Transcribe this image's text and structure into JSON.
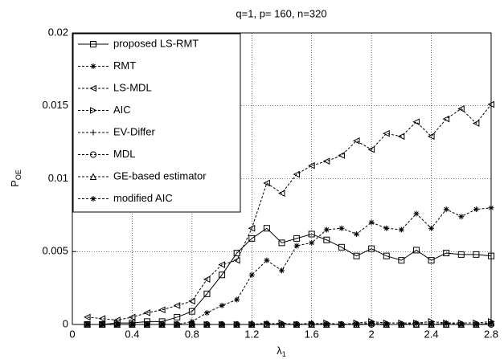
{
  "chart_data": {
    "type": "line",
    "title": "q=1, p= 160, n=320",
    "xlabel": "λ",
    "xlabel_sub": "1",
    "ylabel": "P",
    "ylabel_sub": "OE",
    "x": [
      0.1,
      0.2,
      0.3,
      0.4,
      0.5,
      0.6,
      0.7,
      0.8,
      0.9,
      1.0,
      1.1,
      1.2,
      1.3,
      1.4,
      1.5,
      1.6,
      1.7,
      1.8,
      1.9,
      2.0,
      2.1,
      2.2,
      2.3,
      2.4,
      2.5,
      2.6,
      2.7,
      2.8
    ],
    "xlim": [
      0,
      2.8
    ],
    "xticks": [
      0,
      0.4,
      0.8,
      1.2,
      1.6,
      2,
      2.4,
      2.8
    ],
    "ylim": [
      0,
      0.02
    ],
    "yticks": [
      0,
      0.005,
      0.01,
      0.015,
      0.02
    ],
    "grid": true,
    "legend": "upper left",
    "series": [
      {
        "name": "proposed LS-RMT",
        "color": "#000000",
        "marker": "square",
        "dash": "solid",
        "values": [
          0,
          0,
          0.0001,
          0.0001,
          0.0002,
          0.0002,
          0.0005,
          0.0009,
          0.0021,
          0.0034,
          0.0049,
          0.0059,
          0.0066,
          0.0056,
          0.0059,
          0.0062,
          0.0058,
          0.0053,
          0.0047,
          0.0052,
          0.0047,
          0.0044,
          0.0051,
          0.0044,
          0.0049,
          0.0048,
          0.0048,
          0.0047
        ]
      },
      {
        "name": "RMT",
        "color": "#000000",
        "marker": "star",
        "dash": "dashed",
        "values": [
          0,
          0,
          0,
          0,
          0,
          0,
          0,
          0,
          0,
          0,
          0,
          0,
          0.0001,
          0,
          0,
          0.0001,
          0,
          0,
          0,
          0.0001,
          0,
          0,
          0.0001,
          0,
          0.0001,
          0,
          0,
          0.0001
        ]
      },
      {
        "name": "LS-MDL",
        "color": "#000000",
        "marker": "tri-left",
        "dash": "dashed",
        "values": [
          0.0005,
          0.0004,
          0.0003,
          0.0005,
          0.0008,
          0.001,
          0.0013,
          0.0016,
          0.0031,
          0.0041,
          0.0044,
          0.0066,
          0.0097,
          0.009,
          0.0103,
          0.0109,
          0.0112,
          0.0116,
          0.0126,
          0.012,
          0.0131,
          0.0129,
          0.0139,
          0.0129,
          0.0141,
          0.0148,
          0.0138,
          0.0151
        ]
      },
      {
        "name": "AIC",
        "color": "#000000",
        "marker": "tri-right",
        "dash": "dashed",
        "values": [
          0,
          0,
          0,
          0,
          0,
          0,
          0,
          0,
          0,
          0,
          0,
          0,
          0,
          0.0001,
          0,
          0,
          0.0001,
          0,
          0.0001,
          0.0002,
          0.0001,
          0.0001,
          0.0001,
          0.0002,
          0.0001,
          0.0001,
          0.0001,
          0.0002
        ]
      },
      {
        "name": "EV-Differ",
        "color": "#000000",
        "marker": "plus",
        "dash": "dashed",
        "values": [
          0,
          0,
          0,
          0,
          0,
          0,
          0,
          0,
          0,
          0,
          0,
          0,
          0,
          0,
          0,
          0,
          0,
          0,
          0,
          0,
          0,
          0,
          0,
          0,
          0,
          0,
          0,
          0
        ]
      },
      {
        "name": "MDL",
        "color": "#000000",
        "marker": "circle",
        "dash": "dashed",
        "values": [
          0,
          0,
          0,
          0,
          0,
          0,
          0,
          0,
          0,
          0,
          0,
          0,
          0,
          0,
          0,
          0,
          0,
          0,
          0,
          0,
          0,
          0,
          0,
          0,
          0,
          0,
          0,
          0
        ]
      },
      {
        "name": "GE-based estimator",
        "color": "#000000",
        "marker": "tri-up",
        "dash": "dashed",
        "values": [
          0,
          0,
          0,
          0,
          0,
          0,
          0,
          0,
          0,
          0,
          0,
          0,
          0,
          0,
          0,
          0,
          0,
          0,
          0,
          0.0001,
          0,
          0,
          0,
          0,
          0,
          0,
          0,
          0.0001
        ]
      },
      {
        "name": "modified AIC",
        "color": "#000000",
        "marker": "star",
        "dash": "dashed",
        "values": [
          0,
          0,
          0,
          0,
          0,
          0,
          0,
          0.0002,
          0.0008,
          0.0013,
          0.0017,
          0.0034,
          0.0044,
          0.0037,
          0.0054,
          0.0056,
          0.0065,
          0.0066,
          0.0062,
          0.007,
          0.0066,
          0.0065,
          0.0076,
          0.0066,
          0.0079,
          0.0074,
          0.0079,
          0.008
        ]
      }
    ]
  }
}
